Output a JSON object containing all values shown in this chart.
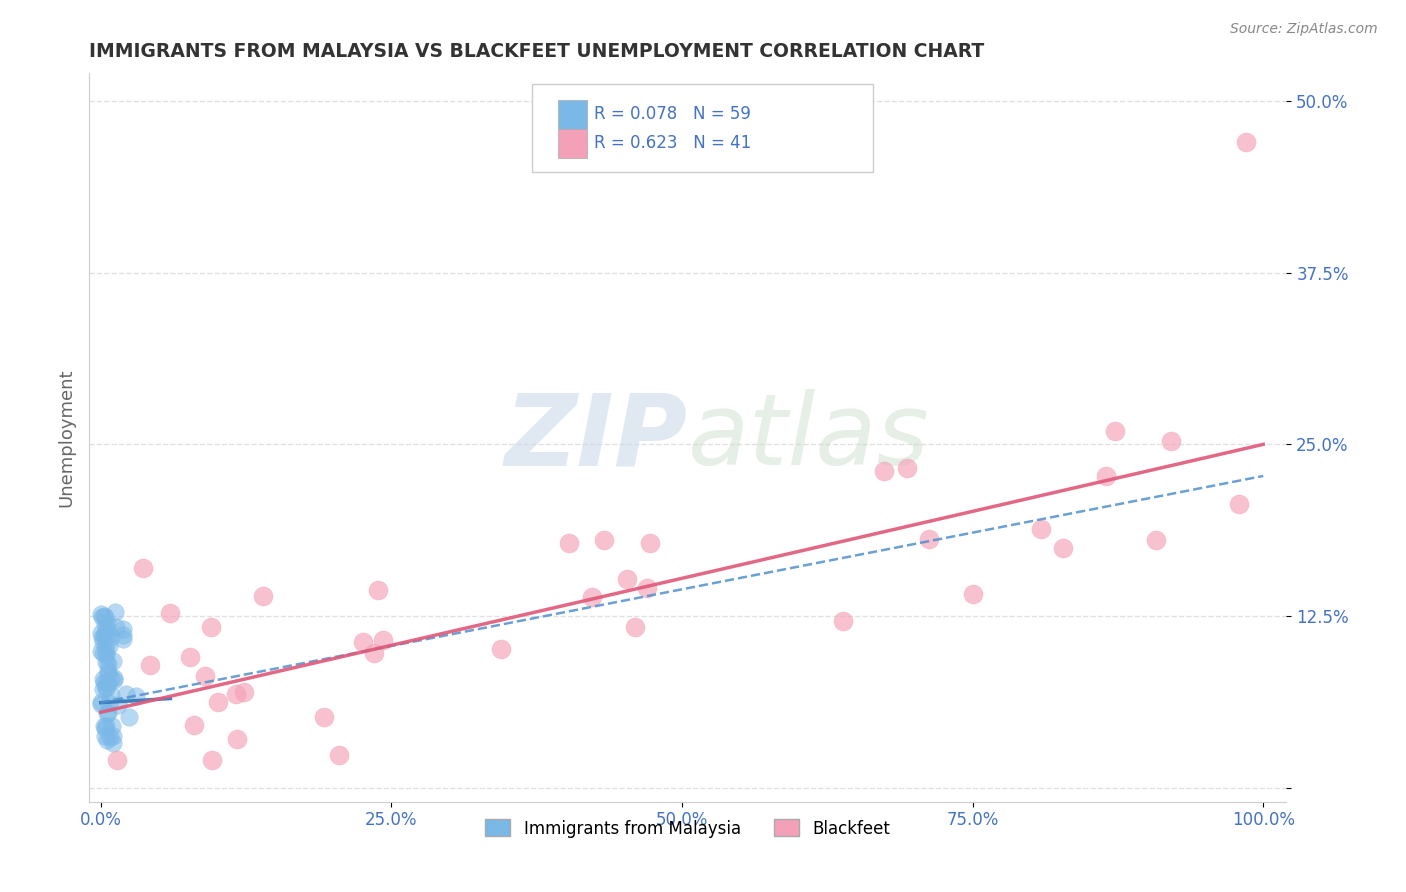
{
  "title": "IMMIGRANTS FROM MALAYSIA VS BLACKFEET UNEMPLOYMENT CORRELATION CHART",
  "source": "Source: ZipAtlas.com",
  "ylabel_label": "Unemployment",
  "legend_label1": "Immigrants from Malaysia",
  "legend_label2": "Blackfeet",
  "R1": 0.078,
  "N1": 59,
  "R2": 0.623,
  "N2": 41,
  "xlim": [
    0,
    1.0
  ],
  "ylim": [
    0,
    0.5
  ],
  "xticks": [
    0.0,
    0.25,
    0.5,
    0.75,
    1.0
  ],
  "yticks": [
    0.0,
    0.125,
    0.25,
    0.375,
    0.5
  ],
  "xticklabels": [
    "0.0%",
    "25.0%",
    "50.0%",
    "75.0%",
    "100.0%"
  ],
  "yticklabels_right": [
    "",
    "12.5%",
    "25.0%",
    "37.5%",
    "50.0%"
  ],
  "color_blue": "#7ab8e8",
  "color_pink": "#f4a0b8",
  "color_blue_line": "#3a7abd",
  "color_blue_line_dash": "#5090cc",
  "color_pink_line": "#e05878",
  "watermark_zip": "ZIP",
  "watermark_atlas": "atlas",
  "background_color": "#ffffff",
  "grid_color": "#cccccc",
  "title_color": "#333333",
  "tick_color": "#4472c4",
  "source_color": "#888888"
}
